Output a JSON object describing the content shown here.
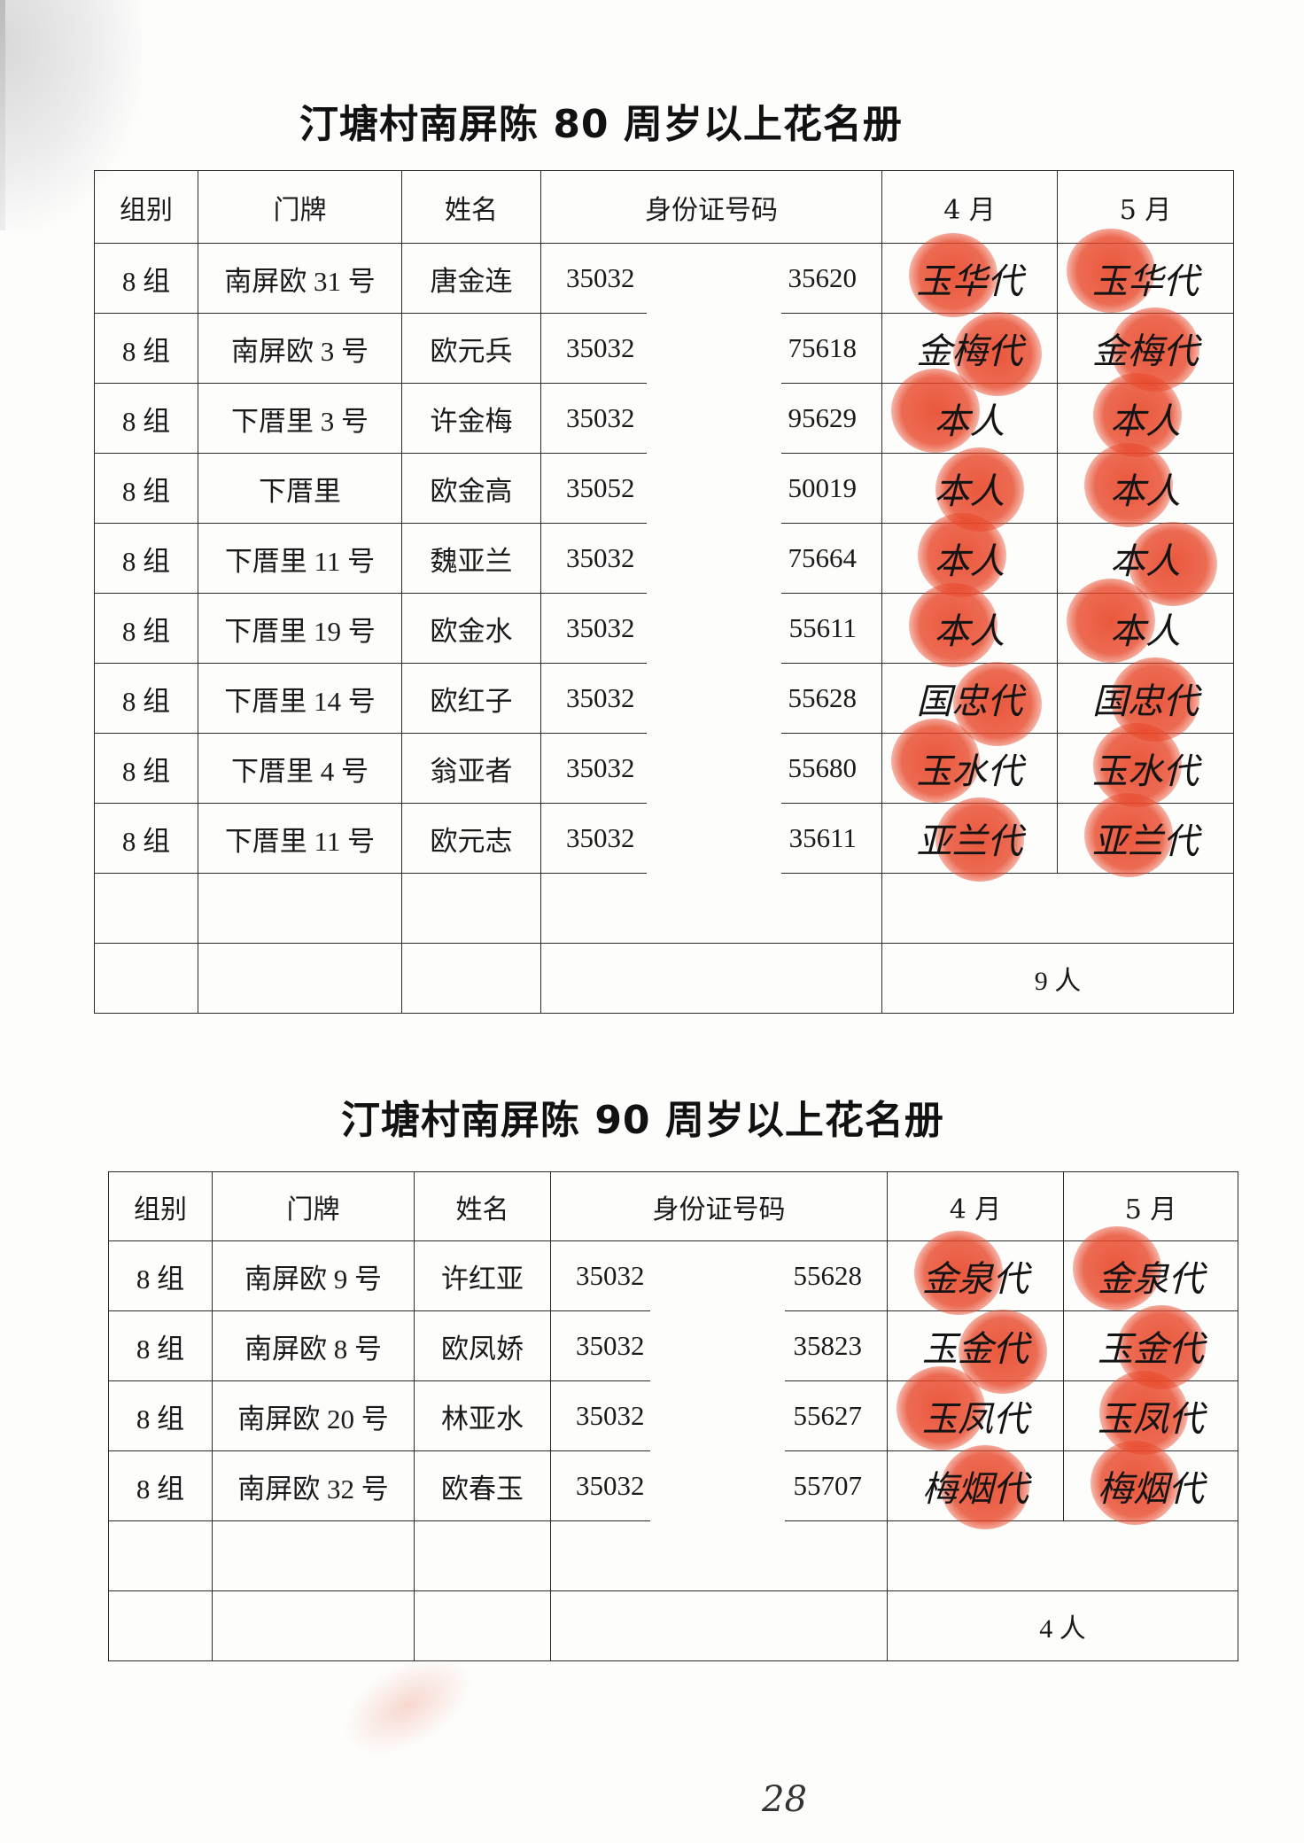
{
  "colors": {
    "seal": "#e84628",
    "ink": "#141414"
  },
  "table80": {
    "title": "汀塘村南屏陈 80 周岁以上花名册",
    "headers": [
      "组别",
      "门牌",
      "姓名",
      "身份证号码",
      "4 月",
      "5 月"
    ],
    "rows": [
      {
        "group": "8 组",
        "address": "南屏欧 31 号",
        "name": "唐金连",
        "id_start": "35032",
        "id_end": "35620",
        "apr": "玉华代",
        "may": "玉华代"
      },
      {
        "group": "8 组",
        "address": "南屏欧 3 号",
        "name": "欧元兵",
        "id_start": "35032",
        "id_end": "75618",
        "apr": "金梅代",
        "may": "金梅代"
      },
      {
        "group": "8 组",
        "address": "下厝里 3 号",
        "name": "许金梅",
        "id_start": "35032",
        "id_end": "95629",
        "apr": "本人",
        "may": "本人"
      },
      {
        "group": "8 组",
        "address": "下厝里",
        "name": "欧金高",
        "id_start": "35052",
        "id_end": "50019",
        "apr": "本人",
        "may": "本人"
      },
      {
        "group": "8 组",
        "address": "下厝里 11 号",
        "name": "魏亚兰",
        "id_start": "35032",
        "id_end": "75664",
        "apr": "本人",
        "may": "本人"
      },
      {
        "group": "8 组",
        "address": "下厝里 19 号",
        "name": "欧金水",
        "id_start": "35032",
        "id_end": "55611",
        "apr": "本人",
        "may": "本人"
      },
      {
        "group": "8 组",
        "address": "下厝里 14 号",
        "name": "欧红子",
        "id_start": "35032",
        "id_end": "55628",
        "apr": "国忠代",
        "may": "国忠代"
      },
      {
        "group": "8 组",
        "address": "下厝里 4 号",
        "name": "翁亚者",
        "id_start": "35032",
        "id_end": "55680",
        "apr": "玉水代",
        "may": "玉水代"
      },
      {
        "group": "8 组",
        "address": "下厝里 11 号",
        "name": "欧元志",
        "id_start": "35032",
        "id_end": "35611",
        "apr": "亚兰代",
        "may": "亚兰代"
      }
    ],
    "total": "9 人"
  },
  "table90": {
    "title": "汀塘村南屏陈 90 周岁以上花名册",
    "headers": [
      "组别",
      "门牌",
      "姓名",
      "身份证号码",
      "4 月",
      "5 月"
    ],
    "rows": [
      {
        "group": "8 组",
        "address": "南屏欧 9 号",
        "name": "许红亚",
        "id_start": "35032",
        "id_end": "55628",
        "apr": "金泉代",
        "may": "金泉代"
      },
      {
        "group": "8 组",
        "address": "南屏欧 8 号",
        "name": "欧凤娇",
        "id_start": "35032",
        "id_end": "35823",
        "apr": "玉金代",
        "may": "玉金代"
      },
      {
        "group": "8 组",
        "address": "南屏欧 20 号",
        "name": "林亚水",
        "id_start": "35032",
        "id_end": "55627",
        "apr": "玉凤代",
        "may": "玉凤代"
      },
      {
        "group": "8 组",
        "address": "南屏欧 32 号",
        "name": "欧春玉",
        "id_start": "35032",
        "id_end": "55707",
        "apr": "梅烟代",
        "may": "梅烟代"
      }
    ],
    "total": "4 人"
  },
  "page_number": "28"
}
